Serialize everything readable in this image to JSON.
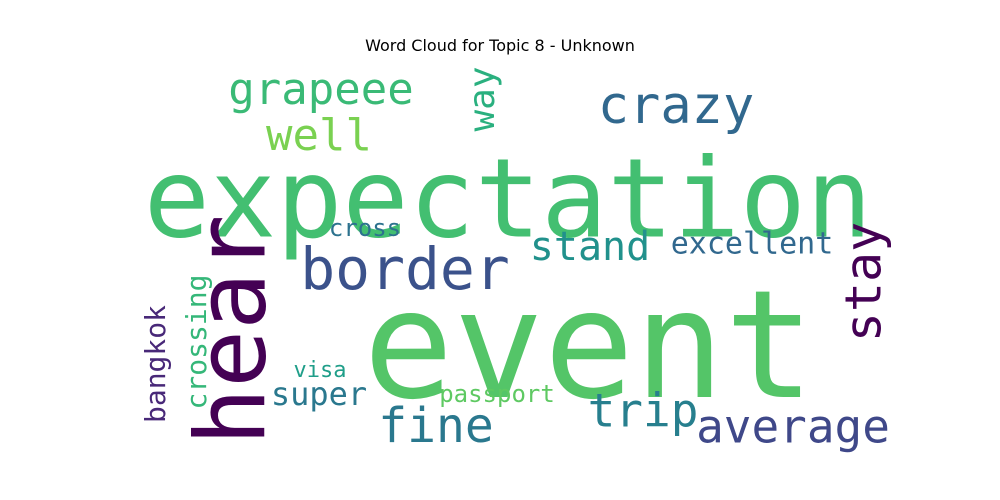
{
  "chart_data": {
    "type": "wordcloud",
    "title": "Word Cloud for Topic 8 - Unknown",
    "words": [
      {
        "text": "expectation",
        "weight": 1.0,
        "color": "#43bf71"
      },
      {
        "text": "event",
        "weight": 0.98,
        "color": "#54c568"
      },
      {
        "text": "hear",
        "weight": 0.72,
        "color": "#440154"
      },
      {
        "text": "border",
        "weight": 0.43,
        "color": "#3b528b"
      },
      {
        "text": "crazy",
        "weight": 0.37,
        "color": "#31688e"
      },
      {
        "text": "stay",
        "weight": 0.36,
        "color": "#440154"
      },
      {
        "text": "fine",
        "weight": 0.35,
        "color": "#2a788e"
      },
      {
        "text": "average",
        "weight": 0.35,
        "color": "#3f4889"
      },
      {
        "text": "grapeee",
        "weight": 0.35,
        "color": "#3aba76"
      },
      {
        "text": "trip",
        "weight": 0.35,
        "color": "#277f8e"
      },
      {
        "text": "well",
        "weight": 0.34,
        "color": "#7ad151"
      },
      {
        "text": "stand",
        "weight": 0.32,
        "color": "#21918c"
      },
      {
        "text": "way",
        "weight": 0.27,
        "color": "#2ab07f"
      },
      {
        "text": "super",
        "weight": 0.27,
        "color": "#2a788e"
      },
      {
        "text": "excellent",
        "weight": 0.24,
        "color": "#31688e"
      },
      {
        "text": "crossing",
        "weight": 0.23,
        "color": "#35b779"
      },
      {
        "text": "bangkok",
        "weight": 0.22,
        "color": "#482878"
      },
      {
        "text": "cross",
        "weight": 0.2,
        "color": "#2c728e"
      },
      {
        "text": "passport",
        "weight": 0.2,
        "color": "#5ec962"
      },
      {
        "text": "visa",
        "weight": 0.18,
        "color": "#1f9e89"
      }
    ]
  }
}
